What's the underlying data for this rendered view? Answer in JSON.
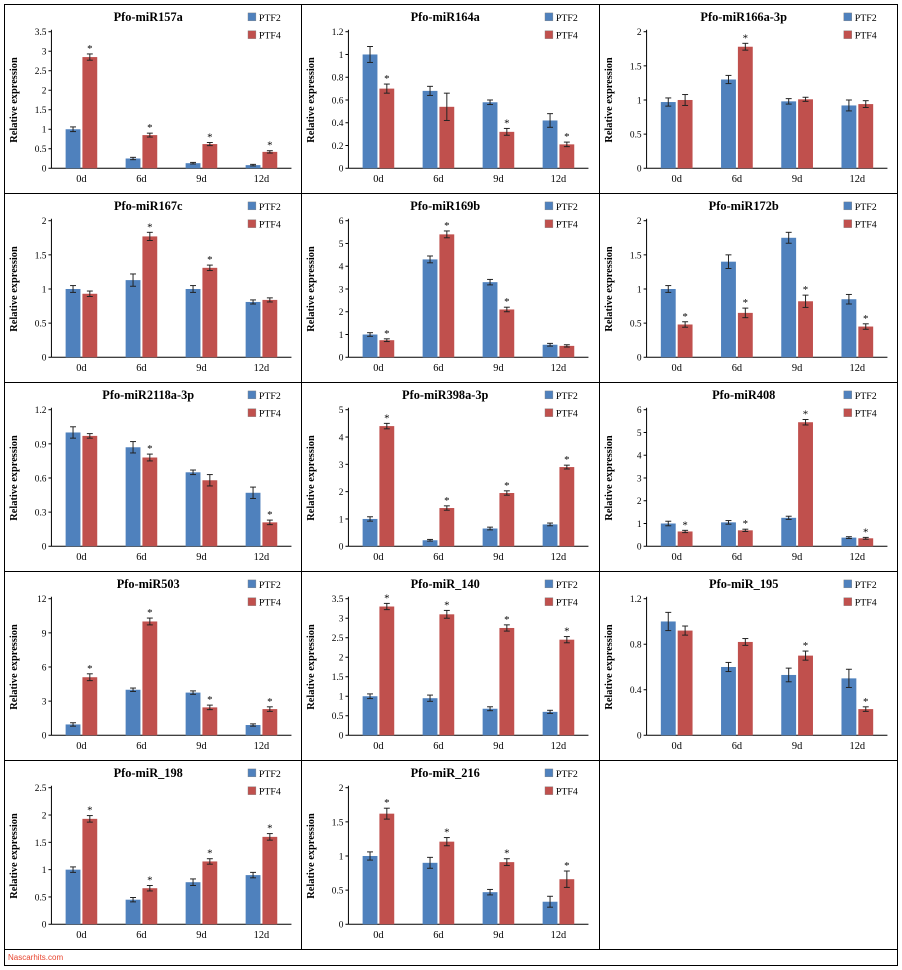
{
  "page": {
    "watermark": "Nascarhits.com"
  },
  "colors": {
    "ptf2": "#4f81bd",
    "ptf4": "#c0504d",
    "axis": "#000000",
    "error_bar": "#222222"
  },
  "axis": {
    "ylabel": "Relative expression",
    "categories": [
      "0d",
      "6d",
      "9d",
      "12d"
    ]
  },
  "legend": {
    "items": [
      {
        "label": "PTF2",
        "color": "#4f81bd"
      },
      {
        "label": "PTF4",
        "color": "#c0504d"
      }
    ]
  },
  "chart_data": [
    {
      "type": "bar",
      "title": "Pfo-miR157a",
      "ylabel": "Relative expression",
      "categories": [
        "0d",
        "6d",
        "9d",
        "12d"
      ],
      "ylim": [
        0,
        3.5
      ],
      "yticks": [
        0,
        0.5,
        1,
        1.5,
        2,
        2.5,
        3,
        3.5
      ],
      "series": [
        {
          "name": "PTF2",
          "color": "#4f81bd",
          "values": [
            1.0,
            0.25,
            0.13,
            0.08
          ],
          "errors": [
            0.06,
            0.03,
            0.02,
            0.02
          ],
          "stars": [
            0,
            0,
            0,
            0
          ]
        },
        {
          "name": "PTF4",
          "color": "#c0504d",
          "values": [
            2.85,
            0.85,
            0.62,
            0.42
          ],
          "errors": [
            0.08,
            0.05,
            0.04,
            0.03
          ],
          "stars": [
            1,
            1,
            1,
            1
          ]
        }
      ]
    },
    {
      "type": "bar",
      "title": "Pfo-miR164a",
      "ylabel": "Relative expression",
      "categories": [
        "0d",
        "6d",
        "9d",
        "12d"
      ],
      "ylim": [
        0,
        1.2
      ],
      "yticks": [
        0,
        0.2,
        0.4,
        0.6,
        0.8,
        1,
        1.2
      ],
      "series": [
        {
          "name": "PTF2",
          "color": "#4f81bd",
          "values": [
            1.0,
            0.68,
            0.58,
            0.42
          ],
          "errors": [
            0.07,
            0.04,
            0.02,
            0.06
          ],
          "stars": [
            0,
            0,
            0,
            0
          ]
        },
        {
          "name": "PTF4",
          "color": "#c0504d",
          "values": [
            0.7,
            0.54,
            0.32,
            0.21
          ],
          "errors": [
            0.04,
            0.12,
            0.03,
            0.02
          ],
          "stars": [
            1,
            0,
            1,
            1
          ]
        }
      ]
    },
    {
      "type": "bar",
      "title": "Pfo-miR166a-3p",
      "ylabel": "Relative expression",
      "categories": [
        "0d",
        "6d",
        "9d",
        "12d"
      ],
      "ylim": [
        0,
        2
      ],
      "yticks": [
        0,
        0.5,
        1,
        1.5,
        2
      ],
      "series": [
        {
          "name": "PTF2",
          "color": "#4f81bd",
          "values": [
            0.97,
            1.3,
            0.98,
            0.92
          ],
          "errors": [
            0.06,
            0.06,
            0.04,
            0.08
          ],
          "stars": [
            0,
            0,
            0,
            0
          ]
        },
        {
          "name": "PTF4",
          "color": "#c0504d",
          "values": [
            1.0,
            1.78,
            1.01,
            0.94
          ],
          "errors": [
            0.08,
            0.05,
            0.03,
            0.05
          ],
          "stars": [
            0,
            1,
            0,
            0
          ]
        }
      ]
    },
    {
      "type": "bar",
      "title": "Pfo-miR167c",
      "ylabel": "Relative expression",
      "categories": [
        "0d",
        "6d",
        "9d",
        "12d"
      ],
      "ylim": [
        0,
        2
      ],
      "yticks": [
        0,
        0.5,
        1,
        1.5,
        2
      ],
      "series": [
        {
          "name": "PTF2",
          "color": "#4f81bd",
          "values": [
            1.0,
            1.13,
            1.0,
            0.81
          ],
          "errors": [
            0.05,
            0.09,
            0.05,
            0.03
          ],
          "stars": [
            0,
            0,
            0,
            0
          ]
        },
        {
          "name": "PTF4",
          "color": "#c0504d",
          "values": [
            0.93,
            1.77,
            1.31,
            0.84
          ],
          "errors": [
            0.04,
            0.06,
            0.04,
            0.03
          ],
          "stars": [
            0,
            1,
            1,
            0
          ]
        }
      ]
    },
    {
      "type": "bar",
      "title": "Pfo-miR169b",
      "ylabel": "Relative expression",
      "categories": [
        "0d",
        "6d",
        "9d",
        "12d"
      ],
      "ylim": [
        0,
        6
      ],
      "yticks": [
        0,
        1,
        2,
        3,
        4,
        5,
        6
      ],
      "series": [
        {
          "name": "PTF2",
          "color": "#4f81bd",
          "values": [
            1.0,
            4.3,
            3.3,
            0.55
          ],
          "errors": [
            0.08,
            0.15,
            0.12,
            0.06
          ],
          "stars": [
            0,
            0,
            0,
            0
          ]
        },
        {
          "name": "PTF4",
          "color": "#c0504d",
          "values": [
            0.75,
            5.4,
            2.1,
            0.5
          ],
          "errors": [
            0.06,
            0.15,
            0.1,
            0.05
          ],
          "stars": [
            1,
            1,
            1,
            0
          ]
        }
      ]
    },
    {
      "type": "bar",
      "title": "Pfo-miR172b",
      "ylabel": "Relative expression",
      "categories": [
        "0d",
        "6d",
        "9d",
        "12d"
      ],
      "ylim": [
        0,
        2
      ],
      "yticks": [
        0,
        0.5,
        1,
        1.5,
        2
      ],
      "series": [
        {
          "name": "PTF2",
          "color": "#4f81bd",
          "values": [
            1.0,
            1.4,
            1.75,
            0.85
          ],
          "errors": [
            0.05,
            0.1,
            0.08,
            0.07
          ],
          "stars": [
            0,
            0,
            0,
            0
          ]
        },
        {
          "name": "PTF4",
          "color": "#c0504d",
          "values": [
            0.48,
            0.65,
            0.82,
            0.45
          ],
          "errors": [
            0.04,
            0.07,
            0.09,
            0.04
          ],
          "stars": [
            1,
            1,
            1,
            1
          ]
        }
      ]
    },
    {
      "type": "bar",
      "title": "Pfo-miR2118a-3p",
      "ylabel": "Relative expression",
      "categories": [
        "0d",
        "6d",
        "9d",
        "12d"
      ],
      "ylim": [
        0,
        1.2
      ],
      "yticks": [
        0,
        0.3,
        0.6,
        0.9,
        1.2
      ],
      "series": [
        {
          "name": "PTF2",
          "color": "#4f81bd",
          "values": [
            1.0,
            0.87,
            0.65,
            0.47
          ],
          "errors": [
            0.05,
            0.05,
            0.02,
            0.05
          ],
          "stars": [
            0,
            0,
            0,
            0
          ]
        },
        {
          "name": "PTF4",
          "color": "#c0504d",
          "values": [
            0.97,
            0.78,
            0.58,
            0.21
          ],
          "errors": [
            0.02,
            0.03,
            0.05,
            0.02
          ],
          "stars": [
            0,
            1,
            0,
            1
          ]
        }
      ]
    },
    {
      "type": "bar",
      "title": "Pfo-miR398a-3p",
      "ylabel": "Relative expression",
      "categories": [
        "0d",
        "6d",
        "9d",
        "12d"
      ],
      "ylim": [
        0,
        5
      ],
      "yticks": [
        0,
        1,
        2,
        3,
        4,
        5
      ],
      "series": [
        {
          "name": "PTF2",
          "color": "#4f81bd",
          "values": [
            1.0,
            0.22,
            0.65,
            0.8
          ],
          "errors": [
            0.08,
            0.03,
            0.05,
            0.05
          ],
          "stars": [
            0,
            0,
            0,
            0
          ]
        },
        {
          "name": "PTF4",
          "color": "#c0504d",
          "values": [
            4.4,
            1.4,
            1.95,
            2.9
          ],
          "errors": [
            0.1,
            0.08,
            0.08,
            0.07
          ],
          "stars": [
            1,
            1,
            1,
            1
          ]
        }
      ]
    },
    {
      "type": "bar",
      "title": "Pfo-miR408",
      "ylabel": "Relative expression",
      "categories": [
        "0d",
        "6d",
        "9d",
        "12d"
      ],
      "ylim": [
        0,
        6
      ],
      "yticks": [
        0,
        1,
        2,
        3,
        4,
        5,
        6
      ],
      "series": [
        {
          "name": "PTF2",
          "color": "#4f81bd",
          "values": [
            1.0,
            1.05,
            1.25,
            0.38
          ],
          "errors": [
            0.1,
            0.08,
            0.07,
            0.04
          ],
          "stars": [
            0,
            0,
            0,
            0
          ]
        },
        {
          "name": "PTF4",
          "color": "#c0504d",
          "values": [
            0.65,
            0.7,
            5.45,
            0.35
          ],
          "errors": [
            0.05,
            0.05,
            0.12,
            0.04
          ],
          "stars": [
            1,
            1,
            1,
            1
          ]
        }
      ]
    },
    {
      "type": "bar",
      "title": "Pfo-miR503",
      "ylabel": "Relative expression",
      "categories": [
        "0d",
        "6d",
        "9d",
        "12d"
      ],
      "ylim": [
        0,
        12
      ],
      "yticks": [
        0,
        3,
        6,
        9,
        12
      ],
      "series": [
        {
          "name": "PTF2",
          "color": "#4f81bd",
          "values": [
            0.95,
            4.0,
            3.75,
            0.9
          ],
          "errors": [
            0.15,
            0.15,
            0.15,
            0.1
          ],
          "stars": [
            0,
            0,
            0,
            0
          ]
        },
        {
          "name": "PTF4",
          "color": "#c0504d",
          "values": [
            5.1,
            10.0,
            2.45,
            2.3
          ],
          "errors": [
            0.3,
            0.3,
            0.2,
            0.2
          ],
          "stars": [
            1,
            1,
            1,
            1
          ]
        }
      ]
    },
    {
      "type": "bar",
      "title": "Pfo-miR_140",
      "ylabel": "Relative expression",
      "categories": [
        "0d",
        "6d",
        "9d",
        "12d"
      ],
      "ylim": [
        0,
        3.5
      ],
      "yticks": [
        0,
        0.5,
        1,
        1.5,
        2,
        2.5,
        3,
        3.5
      ],
      "series": [
        {
          "name": "PTF2",
          "color": "#4f81bd",
          "values": [
            1.0,
            0.95,
            0.68,
            0.6
          ],
          "errors": [
            0.06,
            0.08,
            0.05,
            0.04
          ],
          "stars": [
            0,
            0,
            0,
            0
          ]
        },
        {
          "name": "PTF4",
          "color": "#c0504d",
          "values": [
            3.3,
            3.1,
            2.75,
            2.45
          ],
          "errors": [
            0.08,
            0.1,
            0.08,
            0.08
          ],
          "stars": [
            1,
            1,
            1,
            1
          ]
        }
      ]
    },
    {
      "type": "bar",
      "title": "Pfo-miR_195",
      "ylabel": "Relative expression",
      "categories": [
        "0d",
        "6d",
        "9d",
        "12d"
      ],
      "ylim": [
        0,
        1.2
      ],
      "yticks": [
        0,
        0.4,
        0.8,
        1.2
      ],
      "series": [
        {
          "name": "PTF2",
          "color": "#4f81bd",
          "values": [
            1.0,
            0.6,
            0.53,
            0.5
          ],
          "errors": [
            0.08,
            0.04,
            0.06,
            0.08
          ],
          "stars": [
            0,
            0,
            0,
            0
          ]
        },
        {
          "name": "PTF4",
          "color": "#c0504d",
          "values": [
            0.92,
            0.82,
            0.7,
            0.23
          ],
          "errors": [
            0.04,
            0.03,
            0.04,
            0.02
          ],
          "stars": [
            0,
            0,
            1,
            1
          ]
        }
      ]
    },
    {
      "type": "bar",
      "title": "Pfo-miR_198",
      "ylabel": "Relative expression",
      "categories": [
        "0d",
        "6d",
        "9d",
        "12d"
      ],
      "ylim": [
        0,
        2.5
      ],
      "yticks": [
        0,
        0.5,
        1,
        1.5,
        2,
        2.5
      ],
      "series": [
        {
          "name": "PTF2",
          "color": "#4f81bd",
          "values": [
            1.0,
            0.45,
            0.77,
            0.9
          ],
          "errors": [
            0.05,
            0.04,
            0.06,
            0.05
          ],
          "stars": [
            0,
            0,
            0,
            0
          ]
        },
        {
          "name": "PTF4",
          "color": "#c0504d",
          "values": [
            1.93,
            0.66,
            1.15,
            1.6
          ],
          "errors": [
            0.06,
            0.05,
            0.05,
            0.06
          ],
          "stars": [
            1,
            1,
            1,
            1
          ]
        }
      ]
    },
    {
      "type": "bar",
      "title": "Pfo-miR_216",
      "ylabel": "Relative expression",
      "categories": [
        "0d",
        "6d",
        "9d",
        "12d"
      ],
      "ylim": [
        0,
        2
      ],
      "yticks": [
        0,
        0.5,
        1,
        1.5,
        2
      ],
      "series": [
        {
          "name": "PTF2",
          "color": "#4f81bd",
          "values": [
            1.0,
            0.9,
            0.47,
            0.33
          ],
          "errors": [
            0.06,
            0.08,
            0.04,
            0.08
          ],
          "stars": [
            0,
            0,
            0,
            0
          ]
        },
        {
          "name": "PTF4",
          "color": "#c0504d",
          "values": [
            1.62,
            1.21,
            0.91,
            0.66
          ],
          "errors": [
            0.08,
            0.06,
            0.05,
            0.12
          ],
          "stars": [
            1,
            1,
            1,
            1
          ]
        }
      ]
    }
  ]
}
